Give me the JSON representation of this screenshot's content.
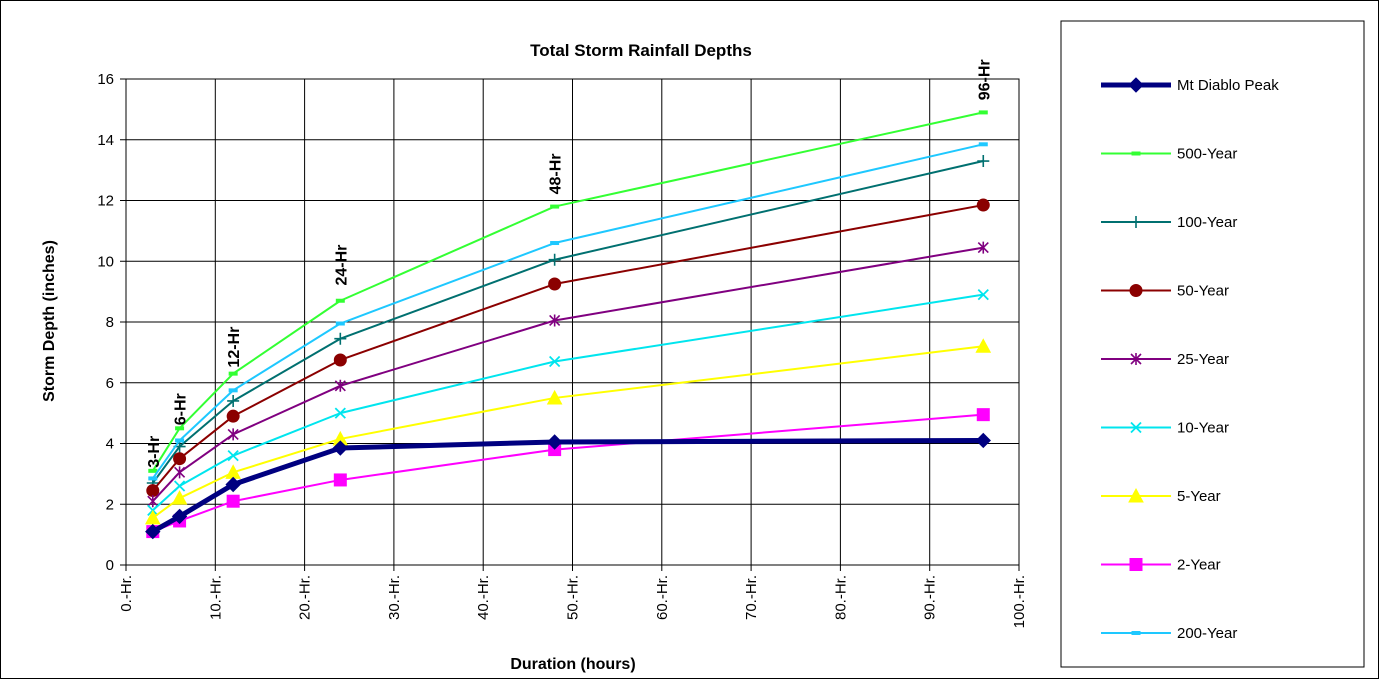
{
  "chart_data": {
    "type": "line",
    "title": "Total Storm Rainfall Depths",
    "xlabel": "Duration (hours)",
    "ylabel": "Storm Depth (inches)",
    "xlim": [
      0,
      100
    ],
    "ylim": [
      0,
      16
    ],
    "x_ticks": [
      0,
      10,
      20,
      30,
      40,
      50,
      60,
      70,
      80,
      90,
      100
    ],
    "x_tick_labels": [
      "0.-Hr.",
      "10.-Hr.",
      "20.-Hr.",
      "30.-Hr.",
      "40.-Hr.",
      "50.-Hr.",
      "60.-Hr.",
      "70.-Hr.",
      "80.-Hr.",
      "90.-Hr.",
      "100.-Hr."
    ],
    "y_ticks": [
      0,
      2,
      4,
      6,
      8,
      10,
      12,
      14,
      16
    ],
    "y_tick_labels": [
      "0",
      "2",
      "4",
      "6",
      "8",
      "10",
      "12",
      "14",
      "16"
    ],
    "grid": true,
    "legend_position": "right",
    "x": [
      3,
      6,
      12,
      24,
      48,
      96
    ],
    "annotations": [
      {
        "text": "3-Hr",
        "x": 3,
        "y": 3.2
      },
      {
        "text": "6-Hr",
        "x": 6,
        "y": 4.6
      },
      {
        "text": "12-Hr",
        "x": 12,
        "y": 6.5
      },
      {
        "text": "24-Hr",
        "x": 24,
        "y": 9.2
      },
      {
        "text": "48-Hr",
        "x": 48,
        "y": 12.2
      },
      {
        "text": "96-Hr",
        "x": 96,
        "y": 15.3
      }
    ],
    "series": [
      {
        "name": "Mt Diablo Peak",
        "color": "#000080",
        "marker": "diamond",
        "width": 5,
        "values": [
          1.1,
          1.6,
          2.65,
          3.85,
          4.05,
          4.1
        ]
      },
      {
        "name": "500-Year",
        "color": "#33ff33",
        "marker": "dash",
        "width": 2,
        "values": [
          3.1,
          4.5,
          6.3,
          8.7,
          11.8,
          14.9
        ]
      },
      {
        "name": "100-Year",
        "color": "#007070",
        "marker": "plus",
        "width": 2,
        "values": [
          2.7,
          3.9,
          5.4,
          7.45,
          10.05,
          13.3
        ]
      },
      {
        "name": "50-Year",
        "color": "#8b0000",
        "marker": "circle",
        "width": 2,
        "values": [
          2.45,
          3.5,
          4.9,
          6.75,
          9.25,
          11.85
        ]
      },
      {
        "name": "25-Year",
        "color": "#800080",
        "marker": "asterisk",
        "width": 2,
        "values": [
          2.1,
          3.05,
          4.3,
          5.9,
          8.05,
          10.45
        ]
      },
      {
        "name": "10-Year",
        "color": "#00e5ee",
        "marker": "x",
        "width": 2,
        "values": [
          1.8,
          2.6,
          3.6,
          5.0,
          6.7,
          8.9
        ]
      },
      {
        "name": "5-Year",
        "color": "#ffff00",
        "marker": "triangle",
        "width": 2,
        "values": [
          1.55,
          2.2,
          3.05,
          4.15,
          5.5,
          7.2
        ]
      },
      {
        "name": "2-Year",
        "color": "#ff00ff",
        "marker": "square",
        "width": 2,
        "values": [
          1.1,
          1.45,
          2.1,
          2.8,
          3.8,
          4.95
        ]
      },
      {
        "name": "200-Year",
        "color": "#1ec8ff",
        "marker": "dash",
        "width": 2,
        "values": [
          2.85,
          4.1,
          5.75,
          7.95,
          10.6,
          13.85
        ]
      }
    ]
  }
}
